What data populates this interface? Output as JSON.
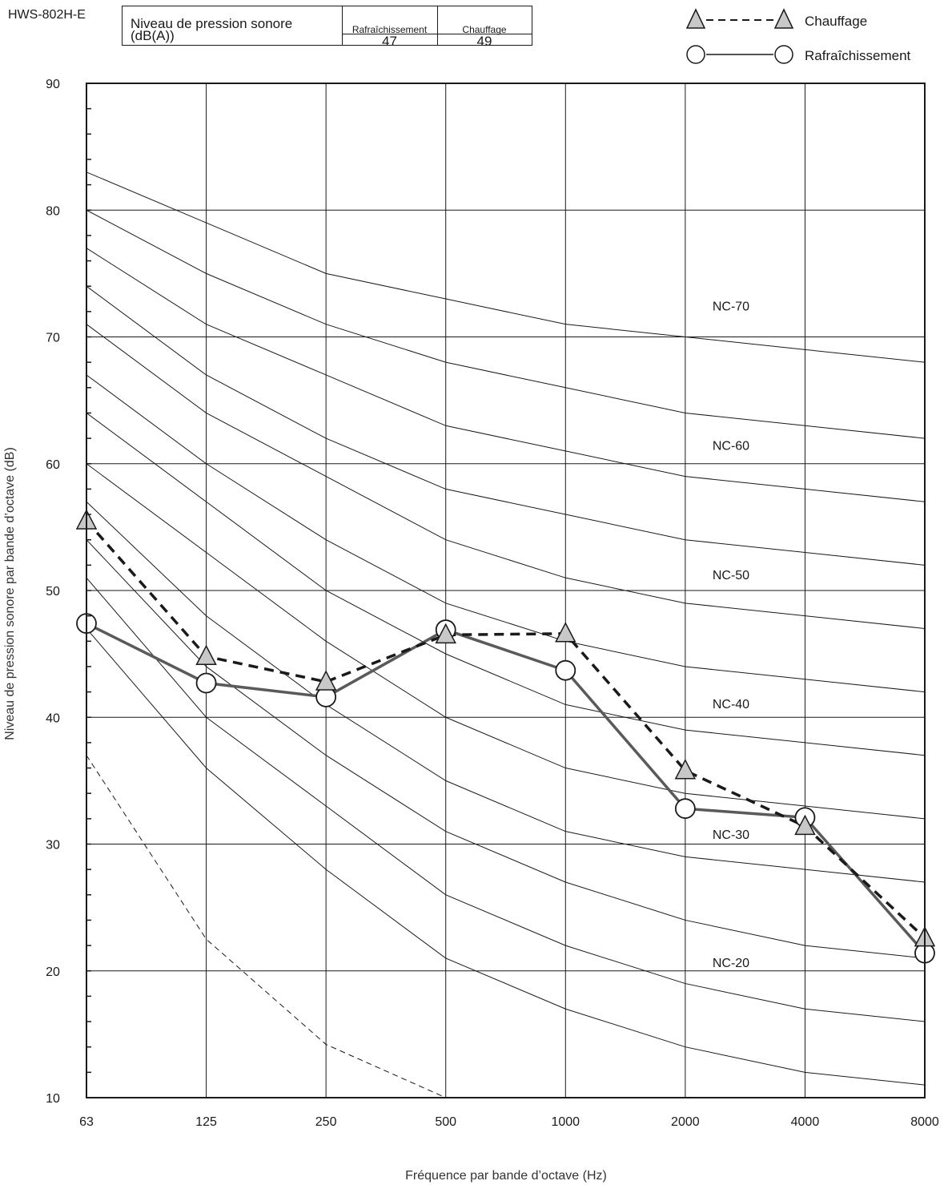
{
  "model": "HWS-802H-E",
  "table": {
    "label": "Niveau de pression sonore (dB(A))",
    "label_line1": "Niveau de pression sonore",
    "label_line2": "(dB(A))",
    "col_cooling": "Rafraîchissement",
    "col_heating": "Chauffage",
    "val_cooling": "47",
    "val_heating": "49"
  },
  "legend": {
    "heating": "Chauffage",
    "cooling": "Rafraîchissement"
  },
  "colors": {
    "cooling_line": "#5a5a5a",
    "heating_line": "#1a1a1a",
    "marker_fill_triangle": "#c8c8c8",
    "grid": "#1a1a1a"
  },
  "chart_data": {
    "type": "line",
    "xlabel": "Fréquence par bande d’octave (Hz)",
    "ylabel": "Niveau de pression sonore par bande d’octave (dB)",
    "x": [
      "63",
      "125",
      "250",
      "500",
      "1000",
      "2000",
      "4000",
      "8000"
    ],
    "ylim": [
      10,
      90
    ],
    "yticks": [
      10,
      20,
      30,
      40,
      50,
      60,
      70,
      80,
      90
    ],
    "grid": true,
    "legend_position": "top-right",
    "series": [
      {
        "name": "Chauffage",
        "style": "dashed",
        "marker": "triangle",
        "values": [
          55.5,
          44.8,
          42.8,
          46.5,
          46.6,
          35.8,
          31.4,
          22.6
        ]
      },
      {
        "name": "Rafraîchissement",
        "style": "solid",
        "marker": "circle",
        "values": [
          47.4,
          42.7,
          41.6,
          46.9,
          43.7,
          32.8,
          32.1,
          21.4
        ]
      }
    ],
    "nc_curves": [
      {
        "name": "NC-70",
        "values": [
          83,
          79,
          75,
          73,
          71,
          70,
          69,
          68
        ]
      },
      {
        "name": "",
        "values": [
          80,
          75,
          71,
          68,
          66,
          64,
          63,
          62
        ]
      },
      {
        "name": "",
        "values": [
          77,
          71,
          67,
          63,
          61,
          59,
          58,
          57
        ]
      },
      {
        "name": "NC-60",
        "values": [
          74,
          67,
          62,
          58,
          56,
          54,
          53,
          52
        ]
      },
      {
        "name": "",
        "values": [
          71,
          64,
          59,
          54,
          51,
          49,
          48,
          47
        ]
      },
      {
        "name": "",
        "values": [
          67,
          60,
          54,
          49,
          46,
          44,
          43,
          42
        ]
      },
      {
        "name": "NC-50",
        "values": [
          64,
          57,
          50,
          45,
          41,
          39,
          38,
          37
        ]
      },
      {
        "name": "",
        "values": [
          60,
          53,
          46,
          40,
          36,
          34,
          33,
          32
        ]
      },
      {
        "name": "NC-40",
        "values": [
          57,
          48,
          41,
          35,
          31,
          29,
          28,
          27
        ]
      },
      {
        "name": "",
        "values": [
          54,
          44,
          37,
          31,
          27,
          24,
          22,
          21
        ]
      },
      {
        "name": "NC-30",
        "values": [
          51,
          40,
          33,
          26,
          22,
          19,
          17,
          16
        ]
      },
      {
        "name": "NC-20",
        "values": [
          47,
          36,
          28,
          21,
          17,
          14,
          12,
          11
        ]
      }
    ],
    "nc_labels": [
      {
        "text": "NC-70",
        "x_index": 5,
        "y": 72.1
      },
      {
        "text": "NC-60",
        "x_index": 5,
        "y": 61.1
      },
      {
        "text": "NC-50",
        "x_index": 5,
        "y": 50.9
      },
      {
        "text": "NC-40",
        "x_index": 5,
        "y": 40.7
      },
      {
        "text": "NC-30",
        "x_index": 5,
        "y": 30.4
      },
      {
        "text": "NC-20",
        "x_index": 5,
        "y": 20.3
      }
    ],
    "threshold_curve": {
      "style": "dashed",
      "values": [
        37,
        22.5,
        14.2,
        10
      ]
    }
  }
}
